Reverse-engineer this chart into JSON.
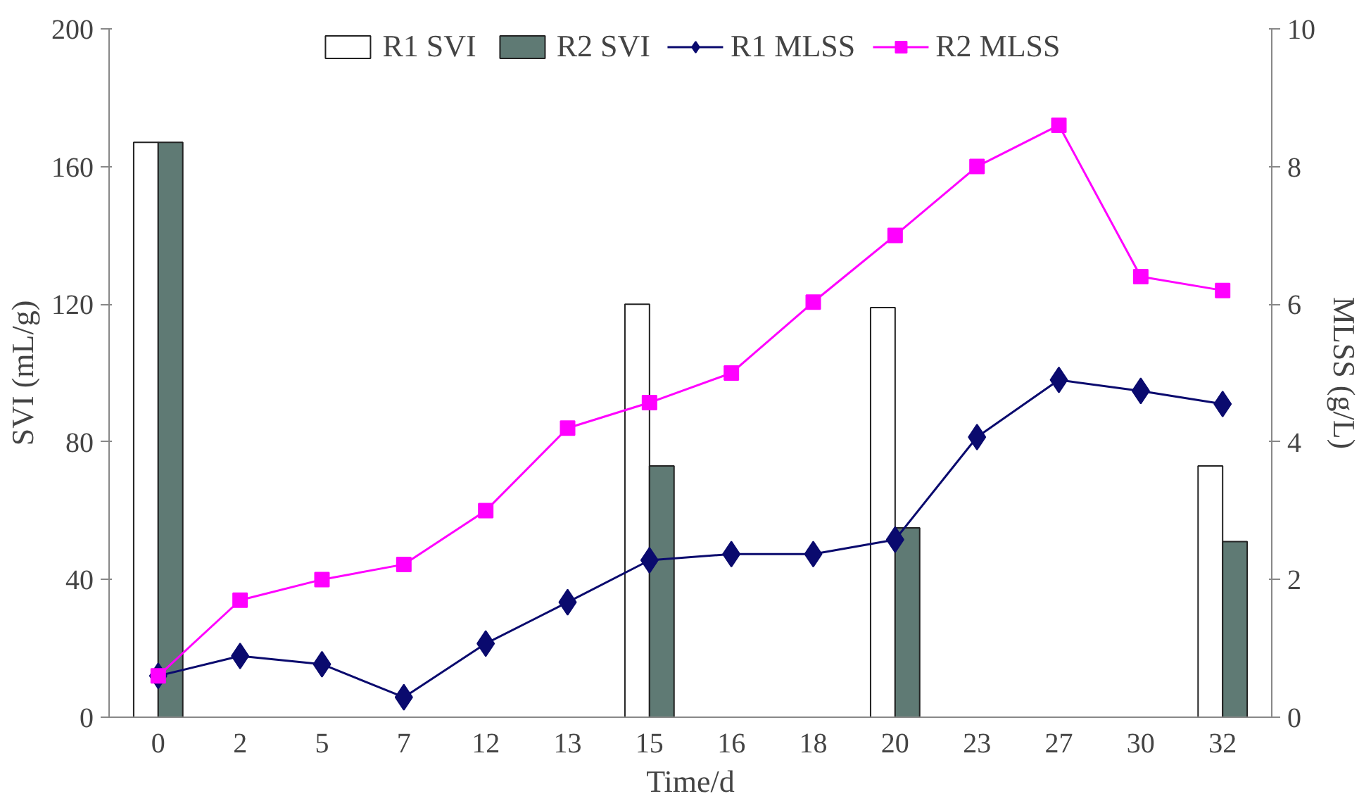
{
  "chart_data": {
    "type": "bar",
    "xlabel": "Time/d",
    "ylabel": "SVI (mL/g)",
    "y2label": "MLSS (g/L)",
    "categories": [
      "0",
      "2",
      "5",
      "7",
      "12",
      "13",
      "15",
      "16",
      "18",
      "20",
      "23",
      "27",
      "30",
      "32"
    ],
    "series": [
      {
        "name": "R1 SVI",
        "color": "#ffffff",
        "values": [
          167,
          null,
          null,
          null,
          null,
          null,
          120,
          null,
          null,
          119,
          null,
          null,
          null,
          73
        ]
      },
      {
        "name": "R2 SVI",
        "color": "#5f7a74",
        "values": [
          167,
          null,
          null,
          null,
          null,
          null,
          73,
          null,
          null,
          55,
          null,
          null,
          null,
          51
        ]
      },
      {
        "name": "R1 MLSS",
        "type": "line",
        "axis": "y2",
        "marker": "diamond",
        "color": "#0a0a6e",
        "values": [
          0.6,
          0.89,
          0.77,
          0.29,
          1.07,
          1.67,
          2.28,
          2.37,
          2.37,
          2.58,
          4.07,
          4.9,
          4.74,
          4.55
        ]
      },
      {
        "name": "R2 MLSS",
        "type": "line",
        "axis": "y2",
        "marker": "square",
        "color": "#ff00ff",
        "values": [
          0.6,
          1.7,
          2.0,
          2.22,
          3.0,
          4.2,
          4.57,
          5.0,
          6.03,
          7.0,
          8.0,
          8.6,
          6.4,
          6.2
        ]
      }
    ],
    "ylim": [
      0,
      200
    ],
    "yticks": [
      0,
      40,
      80,
      120,
      160,
      200
    ],
    "y2lim": [
      0,
      10
    ],
    "y2ticks": [
      0,
      2,
      4,
      6,
      8,
      10
    ],
    "legend": "top",
    "grid": false
  }
}
